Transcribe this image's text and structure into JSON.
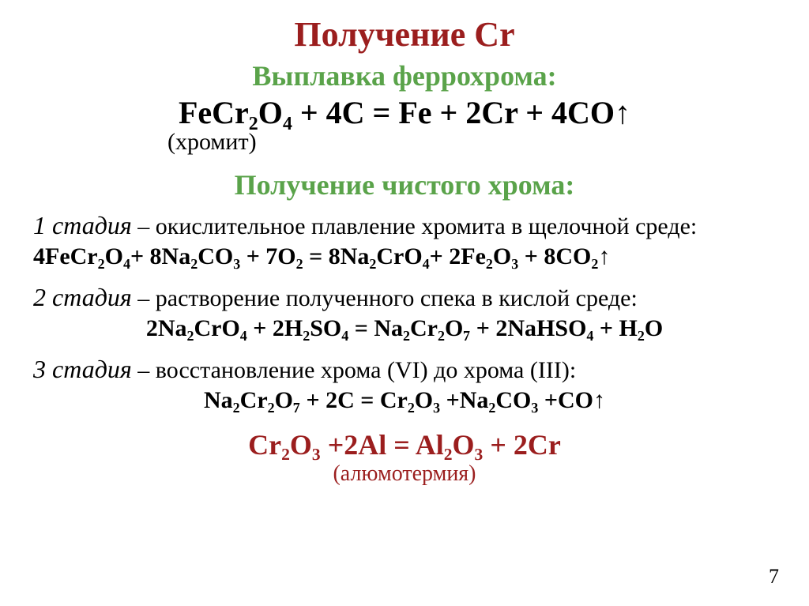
{
  "title": "Получение Cr",
  "subtitle_ferro": "Выплавка феррохрома:",
  "eq_ferro": "FeCr₂O₄ + 4C = Fe + 2Cr + 4CO↑",
  "chromite_label": "(хромит)",
  "subtitle_pure": "Получение чистого хрома:",
  "stage1": {
    "label": "1 стадия",
    "desc": " – окислительное плавление хромита в щелочной среде:",
    "eq": "4FeCr₂O₄+ 8Na₂CO₃ + 7O₂ = 8Na₂CrO₄+ 2Fe₂O₃ + 8CO₂↑"
  },
  "stage2": {
    "label": "2 стадия",
    "desc": " – растворение полученного спека в кислой среде:",
    "eq": "2Na₂CrO₄ + 2H₂SO₄ = Na₂Cr₂O₇ + 2NaHSO₄ + H₂O"
  },
  "stage3": {
    "label": "3 стадия",
    "desc": " – восстановление хрома (VI) до хрома (III):",
    "eq": "Na₂Cr₂O₇ + 2C = Cr₂O₃ +Na₂CO₃ +CO↑"
  },
  "final": {
    "eq": "Cr₂O₃ +2Al = Al₂O₃ + 2Cr",
    "note": "(алюмотермия)"
  },
  "page_number": "7",
  "colors": {
    "title_color": "#9b1e1e",
    "subtitle_color": "#5aa34a",
    "text_color": "#000000",
    "background": "#ffffff"
  },
  "fonts": {
    "family": "Times New Roman",
    "title_size_pt": 33,
    "subtitle_size_pt": 27,
    "eq_main_size_pt": 30,
    "body_size_pt": 22
  }
}
